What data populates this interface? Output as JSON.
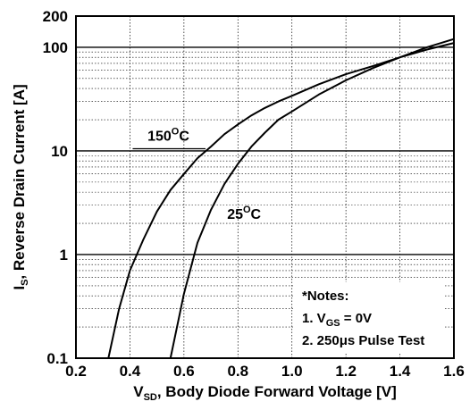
{
  "chart_data": {
    "type": "line",
    "xlabel": {
      "main": "V",
      "sub": "SD",
      "rest": ", Body Diode Forward Voltage [V]"
    },
    "ylabel": {
      "main": "I",
      "sub": "S",
      "rest": ", Reverse Drain Current [A]"
    },
    "xlim": [
      0.2,
      1.6
    ],
    "ylim": [
      0.1,
      200
    ],
    "yscale": "log",
    "grid": true,
    "xticks": [
      0.2,
      0.4,
      0.6,
      0.8,
      1.0,
      1.2,
      1.4,
      1.6
    ],
    "xtick_labels": [
      "0.2",
      "0.4",
      "0.6",
      "0.8",
      "1.0",
      "1.2",
      "1.4",
      "1.6"
    ],
    "yticks": [
      0.1,
      1,
      10,
      100,
      200
    ],
    "ytick_labels": [
      "0.1",
      "1",
      "10",
      "100",
      "200"
    ],
    "series": [
      {
        "name": "150°C",
        "label_main": "150",
        "label_sup": "O",
        "label_rest": "C",
        "color": "#000000",
        "x": [
          0.32,
          0.36,
          0.4,
          0.45,
          0.5,
          0.55,
          0.6,
          0.65,
          0.7,
          0.75,
          0.8,
          0.85,
          0.9,
          0.95,
          1.0,
          1.1,
          1.2,
          1.3,
          1.4,
          1.5,
          1.6
        ],
        "y": [
          0.1,
          0.3,
          0.7,
          1.4,
          2.6,
          4.2,
          6.0,
          8.5,
          11,
          14.5,
          18,
          22,
          26,
          30,
          34,
          44,
          55,
          66,
          80,
          95,
          110
        ]
      },
      {
        "name": "25°C",
        "label_main": "25",
        "label_sup": "O",
        "label_rest": "C",
        "color": "#000000",
        "x": [
          0.55,
          0.6,
          0.65,
          0.7,
          0.75,
          0.8,
          0.85,
          0.9,
          0.95,
          1.0,
          1.1,
          1.2,
          1.3,
          1.4,
          1.5,
          1.6
        ],
        "y": [
          0.1,
          0.42,
          1.3,
          2.7,
          4.8,
          7.5,
          11,
          15,
          20,
          24,
          35,
          48,
          63,
          80,
          100,
          120
        ]
      }
    ],
    "notes": {
      "title": "*Notes:",
      "line1": {
        "pre": "1. V",
        "sub": "GS",
        "post": " = 0V"
      },
      "line2": "2. 250μs Pulse Test"
    }
  }
}
